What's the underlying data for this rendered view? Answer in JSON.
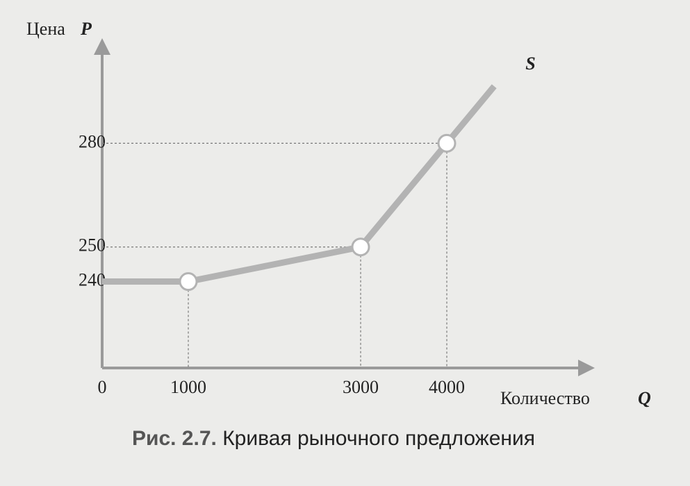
{
  "chart_data": {
    "type": "line",
    "ylabel": "Цена",
    "ylabel_symbol": "P",
    "xlabel": "Количество",
    "xlabel_symbol": "Q",
    "series": [
      {
        "name": "S",
        "color": "#b3b3b3",
        "x": [
          0,
          1000,
          3000,
          4000
        ],
        "values": [
          240,
          240,
          250,
          280
        ]
      }
    ],
    "xlim": [
      0,
      5500
    ],
    "xticks": [
      0,
      1000,
      3000,
      4000
    ],
    "ylim": [
      215,
      310
    ],
    "yticks": [
      240,
      250,
      280
    ],
    "caption_number": "Рис. 2.7.",
    "caption_text": "Кривая рыночного предложения"
  }
}
